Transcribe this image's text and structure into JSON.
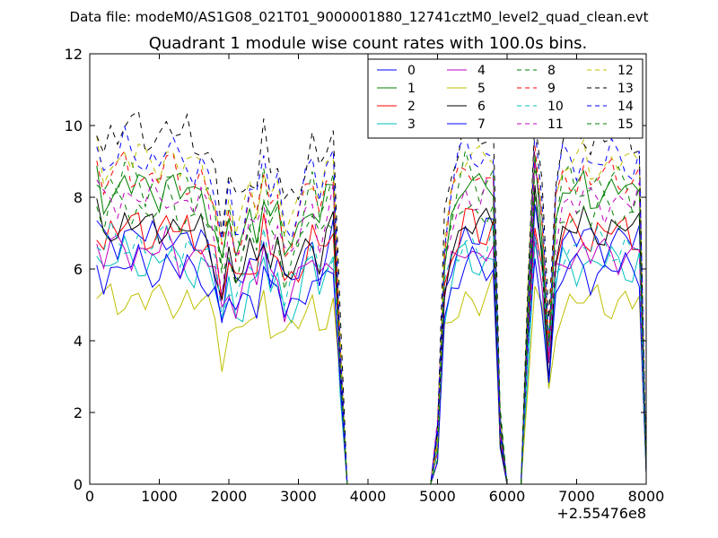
{
  "header": "Data file: modeM0/AS1G08_021T01_9000001880_12741cztM0_level2_quad_clean.evt",
  "chart_data": {
    "type": "line",
    "title": "Quadrant 1 module wise count rates with 100.0s bins.",
    "xlabel": "",
    "ylabel": "",
    "x_offset_label": "+2.55476e8",
    "xlim": [
      0,
      8000
    ],
    "ylim": [
      0,
      12
    ],
    "xticks": [
      0,
      1000,
      2000,
      3000,
      4000,
      5000,
      6000,
      7000,
      8000
    ],
    "yticks": [
      0,
      2,
      4,
      6,
      8,
      10,
      12
    ],
    "grid": false,
    "legend": "top-right",
    "legend_columns": 4,
    "x": [
      100,
      200,
      300,
      400,
      500,
      600,
      700,
      800,
      900,
      1000,
      1100,
      1200,
      1300,
      1400,
      1500,
      1600,
      1700,
      1800,
      1900,
      2000,
      2100,
      2200,
      2300,
      2400,
      2500,
      2600,
      2700,
      2800,
      2900,
      3000,
      3100,
      3200,
      3300,
      3400,
      3500,
      3600,
      3700,
      3800,
      3900,
      4000,
      4100,
      4200,
      4300,
      4400,
      4500,
      4600,
      4700,
      4800,
      4900,
      5000,
      5100,
      5200,
      5300,
      5400,
      5500,
      5600,
      5700,
      5800,
      5900,
      6000,
      6100,
      6200,
      6300,
      6400,
      6500,
      6600,
      6700,
      6800,
      6900,
      7000,
      7100,
      7200,
      7300,
      7400,
      7500,
      7600,
      7700,
      7800,
      7900,
      8000
    ],
    "base_profile": [
      1.0,
      0.93,
      0.98,
      0.96,
      1.0,
      0.97,
      0.99,
      0.95,
      0.97,
      0.96,
      1.0,
      0.98,
      0.94,
      0.97,
      0.93,
      0.96,
      0.92,
      0.86,
      0.7,
      0.85,
      0.76,
      0.8,
      0.88,
      0.84,
      0.98,
      0.85,
      0.88,
      0.76,
      0.79,
      0.83,
      0.9,
      0.95,
      0.85,
      0.92,
      0.97,
      0.45,
      0,
      0,
      0,
      0,
      0,
      0,
      0,
      0,
      0,
      0,
      0,
      0,
      0,
      0.15,
      0.75,
      0.88,
      0.94,
      1.0,
      0.98,
      0.95,
      0.97,
      1.0,
      0.2,
      0,
      0,
      0,
      0.55,
      1.05,
      0.85,
      0.45,
      0.85,
      0.95,
      0.97,
      0.95,
      0.98,
      0.94,
      0.97,
      0.95,
      0.97,
      0.96,
      0.97,
      0.94,
      0.97,
      0.05
    ],
    "series": [
      {
        "name": "0",
        "level": 7.1,
        "color": "#0000ff",
        "dash": false
      },
      {
        "name": "1",
        "level": 8.5,
        "color": "#008000",
        "dash": false
      },
      {
        "name": "2",
        "level": 7.3,
        "color": "#ff0000",
        "dash": false
      },
      {
        "name": "3",
        "level": 6.4,
        "color": "#00bfbf",
        "dash": false
      },
      {
        "name": "4",
        "level": 6.7,
        "color": "#bf00bf",
        "dash": false
      },
      {
        "name": "5",
        "level": 5.3,
        "color": "#bfbf00",
        "dash": false
      },
      {
        "name": "6",
        "level": 7.4,
        "color": "#000000",
        "dash": false
      },
      {
        "name": "7",
        "level": 6.2,
        "color": "#0000ff",
        "dash": false
      },
      {
        "name": "8",
        "level": 8.7,
        "color": "#008000",
        "dash": true
      },
      {
        "name": "9",
        "level": 8.9,
        "color": "#ff0000",
        "dash": true
      },
      {
        "name": "10",
        "level": 6.9,
        "color": "#00bfbf",
        "dash": true
      },
      {
        "name": "11",
        "level": 8.2,
        "color": "#bf00bf",
        "dash": true
      },
      {
        "name": "12",
        "level": 9.3,
        "color": "#bfbf00",
        "dash": true
      },
      {
        "name": "13",
        "level": 10.1,
        "color": "#000000",
        "dash": true
      },
      {
        "name": "14",
        "level": 9.4,
        "color": "#0000ff",
        "dash": true
      },
      {
        "name": "15",
        "level": 7.9,
        "color": "#008000",
        "dash": true
      }
    ]
  }
}
